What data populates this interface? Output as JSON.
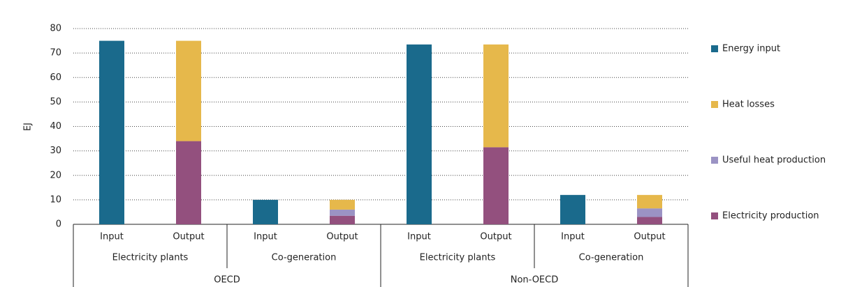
{
  "chart_data": {
    "type": "stacked_bar",
    "y_label": "EJ",
    "categories": [
      "Input",
      "Output",
      "Input",
      "Output",
      "Input",
      "Output",
      "Input",
      "Output"
    ],
    "subgroups": [
      "Electricity plants",
      "Co-generation",
      "Electricity plants",
      "Co-generation"
    ],
    "groups": [
      "OECD",
      "Non-OECD"
    ],
    "series": [
      {
        "name": "Energy input",
        "color": "#1a6a8c",
        "values": [
          75,
          null,
          10,
          null,
          73.5,
          null,
          12,
          null
        ]
      },
      {
        "name": "Heat losses",
        "color": "#e6b84b",
        "values": [
          null,
          41,
          null,
          4,
          null,
          42,
          null,
          5.5
        ]
      },
      {
        "name": "Useful heat production",
        "color": "#9b93c4",
        "values": [
          null,
          null,
          null,
          2.5,
          null,
          null,
          null,
          3.5
        ]
      },
      {
        "name": "Electricity production",
        "color": "#93507e",
        "values": [
          null,
          34,
          null,
          3.5,
          null,
          31.5,
          null,
          3
        ]
      }
    ],
    "ylim": [
      0,
      80
    ],
    "yticks": [
      0,
      10,
      20,
      30,
      40,
      50,
      60,
      70,
      80
    ],
    "grid": true,
    "legend": "right"
  }
}
